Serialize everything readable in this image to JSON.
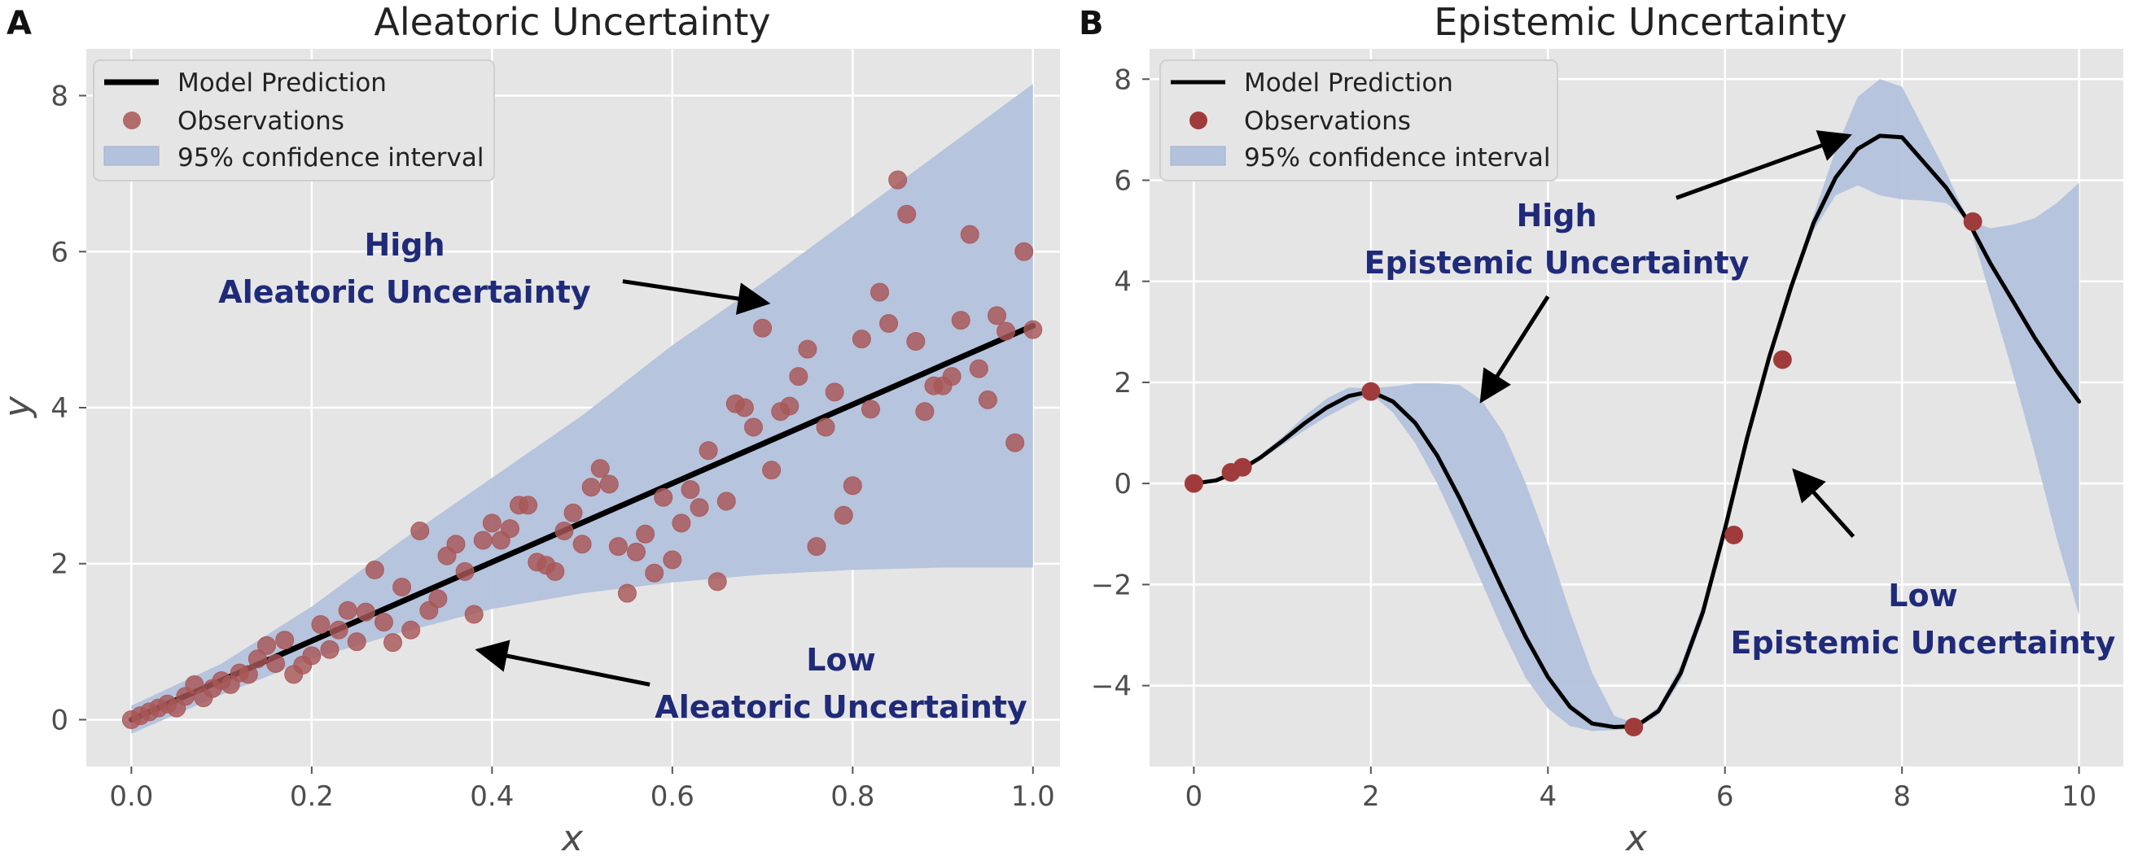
{
  "colors": {
    "panel_bg": "#e5e5e5",
    "grid": "#ffffff",
    "line": "#000000",
    "point": "#a85757",
    "band": "#b3c2dc",
    "annotation": "#1f2a78"
  },
  "chart_data": [
    {
      "type": "scatter",
      "panel": "A",
      "title": "Aleatoric Uncertainty",
      "xlabel": "x",
      "ylabel": "y",
      "xlim": [
        -0.05,
        1.03
      ],
      "ylim": [
        -0.6,
        8.6
      ],
      "xticks": [
        0.0,
        0.2,
        0.4,
        0.6,
        0.8,
        1.0
      ],
      "xtick_labels": [
        "0.0",
        "0.2",
        "0.4",
        "0.6",
        "0.8",
        "1.0"
      ],
      "yticks": [
        0,
        2,
        4,
        6,
        8
      ],
      "ytick_labels": [
        "0",
        "2",
        "4",
        "6",
        "8"
      ],
      "grid": true,
      "legend": {
        "position": "top-left",
        "entries": [
          "Model Prediction",
          "Observations",
          "95% confidence interval"
        ]
      },
      "prediction": {
        "x": [
          0,
          1
        ],
        "y": [
          0,
          5.05
        ]
      },
      "band": {
        "x": [
          0,
          0.1,
          0.2,
          0.3,
          0.4,
          0.5,
          0.6,
          0.7,
          0.8,
          0.9,
          1.0
        ],
        "lower": [
          -0.18,
          0.32,
          0.78,
          1.12,
          1.42,
          1.62,
          1.76,
          1.86,
          1.92,
          1.95,
          1.95
        ],
        "upper": [
          0.18,
          0.72,
          1.45,
          2.3,
          3.1,
          3.9,
          4.8,
          5.6,
          6.45,
          7.3,
          8.15
        ]
      },
      "observations": {
        "x": [
          0.0,
          0.01,
          0.02,
          0.03,
          0.04,
          0.05,
          0.06,
          0.07,
          0.08,
          0.09,
          0.1,
          0.11,
          0.12,
          0.13,
          0.14,
          0.15,
          0.16,
          0.17,
          0.18,
          0.19,
          0.2,
          0.21,
          0.22,
          0.23,
          0.24,
          0.25,
          0.26,
          0.27,
          0.28,
          0.29,
          0.3,
          0.31,
          0.32,
          0.33,
          0.34,
          0.35,
          0.36,
          0.37,
          0.38,
          0.39,
          0.4,
          0.41,
          0.42,
          0.43,
          0.44,
          0.45,
          0.46,
          0.47,
          0.48,
          0.49,
          0.5,
          0.51,
          0.52,
          0.53,
          0.54,
          0.55,
          0.56,
          0.57,
          0.58,
          0.59,
          0.6,
          0.61,
          0.62,
          0.63,
          0.64,
          0.65,
          0.66,
          0.67,
          0.68,
          0.69,
          0.7,
          0.71,
          0.72,
          0.73,
          0.74,
          0.75,
          0.76,
          0.77,
          0.78,
          0.79,
          0.8,
          0.81,
          0.82,
          0.83,
          0.84,
          0.85,
          0.86,
          0.87,
          0.88,
          0.89,
          0.9,
          0.91,
          0.92,
          0.93,
          0.94,
          0.95,
          0.96,
          0.97,
          0.98,
          0.99,
          1.0
        ],
        "y": [
          0.0,
          0.05,
          0.1,
          0.15,
          0.2,
          0.15,
          0.3,
          0.45,
          0.28,
          0.4,
          0.5,
          0.45,
          0.6,
          0.58,
          0.78,
          0.95,
          0.72,
          1.02,
          0.58,
          0.7,
          0.82,
          1.22,
          0.9,
          1.15,
          1.4,
          1.0,
          1.38,
          1.92,
          1.25,
          0.99,
          1.7,
          1.15,
          2.42,
          1.4,
          1.55,
          2.1,
          2.25,
          1.9,
          1.35,
          2.3,
          2.52,
          2.3,
          2.45,
          2.75,
          2.75,
          2.02,
          1.98,
          1.9,
          2.42,
          2.65,
          2.25,
          2.98,
          3.22,
          3.02,
          2.22,
          1.62,
          2.15,
          2.38,
          1.88,
          2.85,
          2.05,
          2.52,
          2.95,
          2.72,
          3.45,
          1.77,
          2.8,
          4.05,
          4.0,
          3.75,
          5.02,
          3.2,
          3.95,
          4.02,
          4.4,
          4.75,
          2.22,
          3.75,
          4.2,
          2.62,
          3.0,
          4.88,
          3.98,
          5.48,
          5.08,
          6.92,
          6.48,
          4.85,
          3.95,
          4.28,
          4.28,
          4.4,
          5.12,
          6.22,
          4.5,
          4.1,
          5.18,
          4.98,
          3.55,
          6.0,
          5.0
        ]
      },
      "annotations": [
        {
          "lines": [
            "High",
            "Aleatoric Uncertainty"
          ]
        },
        {
          "lines": [
            "Low",
            "Aleatoric Uncertainty"
          ]
        }
      ],
      "arrows": [
        {
          "from": [
            0.545,
            5.62
          ],
          "to": [
            0.7,
            5.35
          ]
        },
        {
          "from": [
            0.575,
            0.45
          ],
          "to": [
            0.39,
            0.88
          ]
        }
      ]
    },
    {
      "type": "line",
      "panel": "B",
      "title": "Epistemic Uncertainty",
      "xlabel": "x",
      "ylabel": "",
      "xlim": [
        -0.5,
        10.5
      ],
      "ylim": [
        -5.6,
        8.6
      ],
      "xticks": [
        0,
        2,
        4,
        6,
        8,
        10
      ],
      "xtick_labels": [
        "0",
        "2",
        "4",
        "6",
        "8",
        "10"
      ],
      "yticks": [
        -4,
        -2,
        0,
        2,
        4,
        6,
        8
      ],
      "ytick_labels": [
        "−4",
        "−2",
        "0",
        "2",
        "4",
        "6",
        "8"
      ],
      "grid": true,
      "legend": {
        "position": "top-left",
        "entries": [
          "Model Prediction",
          "Observations",
          "95% confidence interval"
        ]
      },
      "prediction": {
        "x": [
          0,
          0.25,
          0.5,
          0.75,
          1.0,
          1.25,
          1.5,
          1.75,
          2.0,
          2.25,
          2.5,
          2.75,
          3.0,
          3.25,
          3.5,
          3.75,
          4.0,
          4.25,
          4.5,
          4.75,
          5.0,
          5.25,
          5.5,
          5.75,
          6.0,
          6.25,
          6.5,
          6.75,
          7.0,
          7.25,
          7.5,
          7.75,
          8.0,
          8.25,
          8.5,
          8.75,
          9.0,
          9.25,
          9.5,
          9.75,
          10.0
        ],
        "y": [
          0.0,
          0.06,
          0.24,
          0.51,
          0.84,
          1.19,
          1.5,
          1.73,
          1.82,
          1.62,
          1.2,
          0.55,
          -0.28,
          -1.2,
          -2.14,
          -3.04,
          -3.83,
          -4.42,
          -4.75,
          -4.82,
          -4.8,
          -4.5,
          -3.75,
          -2.55,
          -0.9,
          0.9,
          2.5,
          3.9,
          5.15,
          6.05,
          6.62,
          6.88,
          6.85,
          6.35,
          5.85,
          5.18,
          4.35,
          3.62,
          2.88,
          2.22,
          1.62
        ]
      },
      "band": {
        "x": [
          0,
          0.25,
          0.5,
          0.75,
          1.0,
          1.25,
          1.5,
          1.75,
          2.0,
          2.25,
          2.5,
          2.75,
          3.0,
          3.25,
          3.5,
          3.75,
          4.0,
          4.25,
          4.5,
          4.75,
          5.0,
          5.25,
          5.5,
          5.75,
          6.0,
          6.25,
          6.5,
          6.75,
          7.0,
          7.25,
          7.5,
          7.75,
          8.0,
          8.25,
          8.5,
          8.75,
          9.0,
          9.25,
          9.5,
          9.75,
          10.0
        ],
        "lower": [
          0.0,
          0.05,
          0.22,
          0.46,
          0.76,
          1.05,
          1.32,
          1.55,
          1.78,
          1.4,
          0.8,
          0.0,
          -0.95,
          -1.95,
          -2.95,
          -3.85,
          -4.45,
          -4.8,
          -4.9,
          -4.88,
          -4.85,
          -4.58,
          -3.9,
          -2.7,
          -1.0,
          0.8,
          2.45,
          3.85,
          5.0,
          5.7,
          5.9,
          5.7,
          5.62,
          5.6,
          5.55,
          5.2,
          3.7,
          2.2,
          0.6,
          -1.1,
          -2.6
        ],
        "upper": [
          0.0,
          0.07,
          0.26,
          0.56,
          0.92,
          1.33,
          1.68,
          1.9,
          1.88,
          1.92,
          1.98,
          1.98,
          1.95,
          1.65,
          1.0,
          0.0,
          -1.2,
          -2.55,
          -3.75,
          -4.6,
          -4.75,
          -4.42,
          -3.6,
          -2.4,
          -0.8,
          1.0,
          2.55,
          3.95,
          5.3,
          6.6,
          7.65,
          8.0,
          7.85,
          7.0,
          6.15,
          5.2,
          5.05,
          5.12,
          5.25,
          5.55,
          5.95
        ]
      },
      "observations": {
        "x": [
          0.0,
          0.42,
          0.55,
          2.0,
          4.97,
          6.1,
          6.65,
          8.8
        ],
        "y": [
          0.0,
          0.22,
          0.32,
          1.82,
          -4.82,
          -1.02,
          2.45,
          5.18
        ]
      },
      "annotations": [
        {
          "lines": [
            "High",
            "Epistemic Uncertainty"
          ]
        },
        {
          "lines": [
            "Low",
            "Epistemic Uncertainty"
          ]
        }
      ],
      "arrows": [
        {
          "from": [
            5.45,
            5.65
          ],
          "to": [
            7.35,
            6.85
          ]
        },
        {
          "from": [
            4.0,
            3.7
          ],
          "to": [
            3.28,
            1.72
          ]
        },
        {
          "from": [
            7.45,
            -1.05
          ],
          "to": [
            6.82,
            0.18
          ]
        }
      ]
    }
  ]
}
